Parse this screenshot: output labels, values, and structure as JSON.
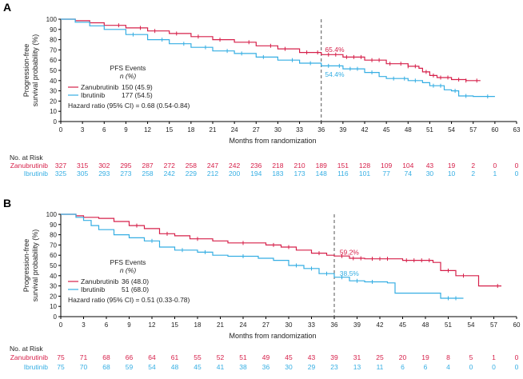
{
  "colors": {
    "zanubrutinib": "#d6204a",
    "ibrutinib": "#35aee3",
    "axis": "#000000",
    "dash": "#555555",
    "text": "#222222"
  },
  "chart_data": [
    {
      "type": "line",
      "panel_label": "A",
      "title": "",
      "xlabel": "Months from randomization",
      "ylabel": "Progression-free survival probability (%)",
      "ylabel_lines": [
        "Progression-free",
        "survival probability (%)"
      ],
      "xlim": [
        0,
        63
      ],
      "ylim": [
        0,
        100
      ],
      "x_ticks": [
        0,
        3,
        6,
        9,
        12,
        15,
        18,
        21,
        24,
        27,
        30,
        33,
        36,
        39,
        42,
        45,
        48,
        51,
        54,
        57,
        60,
        63
      ],
      "y_ticks": [
        0,
        10,
        20,
        30,
        40,
        50,
        60,
        70,
        80,
        90,
        100
      ],
      "reference_x": 36,
      "annotations": [
        {
          "text": "65.4%",
          "x": 36.3,
          "y": 70.5,
          "series": "Zanubrutinib"
        },
        {
          "text": "54.4%",
          "x": 36.3,
          "y": 46,
          "series": "Ibrutinib"
        }
      ],
      "legend": {
        "header": "PFS Events",
        "subheader": "n (%)",
        "entries": [
          {
            "name": "Zanubrutinib",
            "value": "150 (45.9)"
          },
          {
            "name": "Ibrutinib",
            "value": "177 (54.5)"
          }
        ],
        "hazard_ratio": "Hazard ratio (95% CI) = 0.68 (0.54-0.84)"
      },
      "series": [
        {
          "name": "Zanubrutinib",
          "color": "#d6204a",
          "points": [
            [
              0,
              100
            ],
            [
              2,
              98.5
            ],
            [
              4,
              96.5
            ],
            [
              6,
              94
            ],
            [
              9,
              91.5
            ],
            [
              12,
              88.5
            ],
            [
              15,
              86
            ],
            [
              18,
              83
            ],
            [
              21,
              80
            ],
            [
              24,
              77.5
            ],
            [
              27,
              74
            ],
            [
              30,
              71
            ],
            [
              33,
              67.5
            ],
            [
              36,
              65.4
            ],
            [
              39,
              63
            ],
            [
              42,
              60
            ],
            [
              45,
              56.5
            ],
            [
              48,
              54
            ],
            [
              49.5,
              52
            ],
            [
              50,
              48.5
            ],
            [
              51,
              45
            ],
            [
              52,
              43
            ],
            [
              54,
              41
            ],
            [
              56,
              40
            ],
            [
              58,
              40
            ]
          ],
          "censor_x": [
            8,
            11,
            13,
            16,
            19,
            22,
            26,
            29,
            31,
            34,
            35.5,
            37,
            38,
            39.5,
            40.5,
            41.5,
            43,
            44,
            45.5,
            47,
            48,
            49,
            50.5,
            51.5,
            52.5,
            53.5,
            55,
            56,
            57.5
          ]
        },
        {
          "name": "Ibrutinib",
          "color": "#35aee3",
          "points": [
            [
              0,
              100
            ],
            [
              2,
              97
            ],
            [
              4,
              93.5
            ],
            [
              6,
              90
            ],
            [
              9,
              85
            ],
            [
              12,
              80
            ],
            [
              15,
              76
            ],
            [
              18,
              72.5
            ],
            [
              21,
              69
            ],
            [
              24,
              66.5
            ],
            [
              27,
              63
            ],
            [
              30,
              60
            ],
            [
              33,
              57
            ],
            [
              36,
              54.4
            ],
            [
              39,
              51.5
            ],
            [
              42,
              48
            ],
            [
              44,
              44
            ],
            [
              45,
              42
            ],
            [
              48,
              40
            ],
            [
              50,
              38
            ],
            [
              51,
              35
            ],
            [
              53,
              31
            ],
            [
              54,
              30
            ],
            [
              55,
              25
            ],
            [
              57,
              24.5
            ],
            [
              60,
              24.5
            ]
          ],
          "censor_x": [
            10,
            14,
            17,
            20,
            23,
            25,
            28,
            32,
            34.5,
            37,
            38.5,
            40,
            41,
            43,
            46,
            47.5,
            49,
            51.5,
            52.5,
            54.5,
            56,
            59
          ]
        }
      ],
      "risk_table": {
        "header": "No. at Risk",
        "rows": [
          {
            "name": "Zanubrutinib",
            "values": [
              327,
              315,
              302,
              295,
              287,
              272,
              258,
              247,
              242,
              236,
              218,
              210,
              189,
              151,
              128,
              109,
              104,
              43,
              19,
              2,
              0,
              0
            ]
          },
          {
            "name": "Ibrutinib",
            "values": [
              325,
              305,
              293,
              273,
              258,
              242,
              229,
              212,
              200,
              194,
              183,
              173,
              148,
              116,
              101,
              77,
              74,
              30,
              10,
              2,
              1,
              0
            ]
          }
        ]
      }
    },
    {
      "type": "line",
      "panel_label": "B",
      "title": "",
      "xlabel": "Months from randomization",
      "ylabel": "Progression-free survival probability (%)",
      "ylabel_lines": [
        "Progression-free",
        "survival probability (%)"
      ],
      "xlim": [
        0,
        60
      ],
      "ylim": [
        0,
        100
      ],
      "x_ticks": [
        0,
        3,
        6,
        9,
        12,
        15,
        18,
        21,
        24,
        27,
        30,
        33,
        36,
        39,
        42,
        45,
        48,
        51,
        54,
        57,
        60
      ],
      "y_ticks": [
        0,
        10,
        20,
        30,
        40,
        50,
        60,
        70,
        80,
        90,
        100
      ],
      "reference_x": 36,
      "annotations": [
        {
          "text": "59.2%",
          "x": 36.5,
          "y": 63,
          "series": "Zanubrutinib"
        },
        {
          "text": "38.5%",
          "x": 36.5,
          "y": 42,
          "series": "Ibrutinib"
        }
      ],
      "legend": {
        "header": "PFS Events",
        "subheader": "n (%)",
        "entries": [
          {
            "name": "Zanubrutinib",
            "value": "36 (48.0)"
          },
          {
            "name": "Ibrutinib",
            "value": "51 (68.0)"
          }
        ],
        "hazard_ratio": "Hazard ratio (95% CI) = 0.51 (0.33-0.78)"
      },
      "series": [
        {
          "name": "Zanubrutinib",
          "color": "#d6204a",
          "points": [
            [
              0,
              100
            ],
            [
              2,
              98.5
            ],
            [
              3,
              97
            ],
            [
              5,
              96
            ],
            [
              7,
              93
            ],
            [
              9,
              89
            ],
            [
              11,
              86
            ],
            [
              13,
              81
            ],
            [
              15,
              79
            ],
            [
              17,
              76
            ],
            [
              20,
              74
            ],
            [
              22,
              72
            ],
            [
              26,
              72
            ],
            [
              27,
              70
            ],
            [
              29,
              68
            ],
            [
              31,
              65
            ],
            [
              33,
              62
            ],
            [
              35,
              60
            ],
            [
              36,
              59.2
            ],
            [
              38,
              57
            ],
            [
              40,
              56.5
            ],
            [
              44,
              56.5
            ],
            [
              45,
              55
            ],
            [
              48,
              55
            ],
            [
              49,
              53
            ],
            [
              50,
              45
            ],
            [
              52,
              40
            ],
            [
              54,
              40
            ],
            [
              55,
              30
            ],
            [
              58,
              30
            ]
          ],
          "censor_x": [
            10,
            14,
            18,
            24,
            28,
            30,
            34,
            37,
            38.5,
            39.5,
            41,
            42,
            43,
            45.5,
            46.5,
            47.5,
            48.5,
            51,
            53,
            57.5
          ]
        },
        {
          "name": "Ibrutinib",
          "color": "#35aee3",
          "points": [
            [
              0,
              100
            ],
            [
              2,
              97
            ],
            [
              3,
              94
            ],
            [
              4,
              89
            ],
            [
              5,
              85
            ],
            [
              7,
              80
            ],
            [
              9,
              77
            ],
            [
              11,
              74
            ],
            [
              13,
              68
            ],
            [
              15,
              65
            ],
            [
              18,
              63
            ],
            [
              20,
              60
            ],
            [
              22,
              59
            ],
            [
              26,
              57
            ],
            [
              28,
              55
            ],
            [
              30,
              50
            ],
            [
              32,
              47
            ],
            [
              34,
              42
            ],
            [
              36,
              38.5
            ],
            [
              38,
              35
            ],
            [
              40,
              34
            ],
            [
              43,
              33
            ],
            [
              44,
              23
            ],
            [
              49,
              23
            ],
            [
              50,
              18
            ],
            [
              53,
              18
            ]
          ],
          "censor_x": [
            12,
            16,
            19,
            24,
            31,
            33,
            35,
            37,
            39,
            41,
            51,
            52
          ]
        }
      ],
      "risk_table": {
        "header": "No. at Risk",
        "rows": [
          {
            "name": "Zanubrutinib",
            "values": [
              75,
              71,
              68,
              66,
              64,
              61,
              55,
              52,
              51,
              49,
              45,
              43,
              39,
              31,
              25,
              20,
              19,
              8,
              5,
              1,
              0
            ]
          },
          {
            "name": "Ibrutinib",
            "values": [
              75,
              70,
              68,
              59,
              54,
              48,
              45,
              41,
              38,
              36,
              30,
              29,
              23,
              13,
              11,
              6,
              6,
              4,
              0,
              0,
              0
            ]
          }
        ]
      }
    }
  ]
}
